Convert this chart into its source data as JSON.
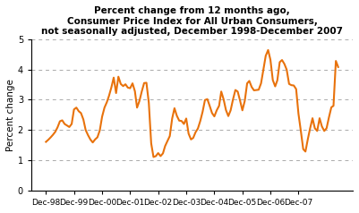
{
  "title_line1": "Percent change from 12 months ago,",
  "title_line2": "Consumer Price Index for All Urban Consumers,",
  "title_line3": "not seasonally adjusted, December 1998-December 2007",
  "ylabel": "Percent change",
  "line_color": "#E8720C",
  "line_width": 1.5,
  "ylim": [
    0,
    5
  ],
  "yticks": [
    0,
    1,
    2,
    3,
    4,
    5
  ],
  "background_color": "#ffffff",
  "grid_color": "#aaaaaa",
  "xtick_labels": [
    "Dec-98",
    "Dec-99",
    "Dec-00",
    "Dec-01",
    "Dec-02",
    "Dec-03",
    "Dec-04",
    "Dec-05",
    "Dec-06",
    "Dec-07"
  ],
  "values": [
    1.61,
    1.68,
    1.76,
    1.84,
    1.94,
    2.09,
    2.29,
    2.32,
    2.2,
    2.15,
    2.1,
    2.2,
    2.68,
    2.74,
    2.62,
    2.56,
    2.35,
    2.0,
    1.83,
    1.69,
    1.59,
    1.69,
    1.76,
    1.99,
    2.44,
    2.74,
    2.92,
    3.13,
    3.41,
    3.73,
    3.22,
    3.76,
    3.52,
    3.45,
    3.51,
    3.4,
    3.38,
    3.54,
    3.28,
    2.74,
    2.96,
    3.27,
    3.55,
    3.56,
    2.9,
    1.56,
    1.11,
    1.14,
    1.24,
    1.14,
    1.23,
    1.47,
    1.64,
    1.8,
    2.38,
    2.72,
    2.47,
    2.31,
    2.3,
    2.2,
    2.38,
    1.88,
    1.69,
    1.74,
    1.93,
    2.05,
    2.3,
    2.6,
    2.99,
    3.02,
    2.8,
    2.56,
    2.45,
    2.65,
    2.8,
    3.27,
    3.01,
    2.66,
    2.46,
    2.65,
    3.01,
    3.32,
    3.27,
    2.97,
    2.65,
    2.96,
    3.54,
    3.62,
    3.42,
    3.31,
    3.32,
    3.33,
    3.54,
    4.0,
    4.45,
    4.64,
    4.32,
    3.65,
    3.44,
    3.64,
    4.24,
    4.31,
    4.18,
    3.99,
    3.52,
    3.48,
    3.47,
    3.35,
    2.54,
    1.97,
    1.37,
    1.29,
    1.7,
    2.06,
    2.39,
    2.06,
    1.97,
    2.39,
    2.12,
    1.97,
    2.06,
    2.42,
    2.75,
    2.8,
    4.28,
    4.08
  ]
}
